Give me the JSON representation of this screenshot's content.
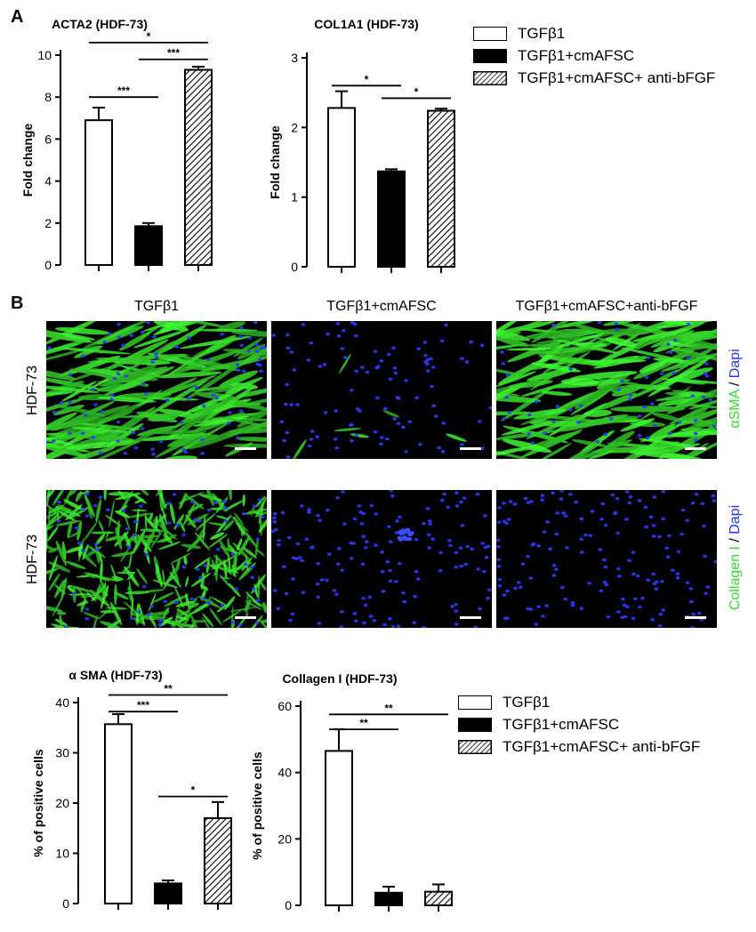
{
  "panel_a_letter": "A",
  "panel_b_letter": "B",
  "colors": {
    "black": "#000000",
    "white": "#ffffff",
    "green": "#33dd33",
    "blue": "#2233ff"
  },
  "legend_a": [
    {
      "label": "TGFβ1",
      "fill": "white"
    },
    {
      "label": "TGFβ1+cmAFSC",
      "fill": "black"
    },
    {
      "label": "TGFβ1+cmAFSC+ anti-bFGF",
      "fill": "hatch"
    }
  ],
  "legend_c": [
    {
      "label": "TGFβ1",
      "fill": "white"
    },
    {
      "label": "TGFβ1+cmAFSC",
      "fill": "black"
    },
    {
      "label": "TGFβ1+cmAFSC+ anti-bFGF",
      "fill": "hatch"
    }
  ],
  "images": {
    "col_labels": [
      "TGFβ1",
      "TGFβ1+cmAFSC",
      "TGFβ1+cmAFSC+anti-bFGF"
    ],
    "row_labels": [
      "HDF-73",
      "HDF-73"
    ],
    "stain_rows": [
      {
        "marker": "αSMA",
        "sep": " / ",
        "dapi": "Dapi"
      },
      {
        "marker": "Collagen I",
        "sep": " / ",
        "dapi": "Dapi"
      }
    ]
  },
  "chart_data": [
    {
      "type": "bar",
      "title": "ACTA2 (HDF-73)",
      "ylabel": "Fold change",
      "xlabel": "",
      "ylim": [
        0,
        10
      ],
      "yticks": [
        0,
        2,
        4,
        6,
        8,
        10
      ],
      "categories": [
        "TGFβ1",
        "TGFβ1+cmAFSC",
        "TGFβ1+cmAFSC+ anti-bFGF"
      ],
      "values": [
        6.9,
        1.85,
        9.3
      ],
      "errors": [
        0.6,
        0.15,
        0.15
      ],
      "fills": [
        "white",
        "black",
        "hatch"
      ],
      "significance": [
        {
          "from": 0,
          "to": 2,
          "y": 10.6,
          "label": "*"
        },
        {
          "from": 0,
          "to": 1,
          "y": 8.0,
          "label": "***"
        },
        {
          "from": 1,
          "to": 2,
          "y": 9.8,
          "label": "***"
        }
      ]
    },
    {
      "type": "bar",
      "title": "COL1A1 (HDF-73)",
      "ylabel": "Fold change",
      "xlabel": "",
      "ylim": [
        0,
        3
      ],
      "yticks": [
        0,
        1,
        2,
        3
      ],
      "categories": [
        "TGFβ1",
        "TGFβ1+cmAFSC",
        "TGFβ1+cmAFSC+ anti-bFGF"
      ],
      "values": [
        2.28,
        1.37,
        2.24
      ],
      "errors": [
        0.24,
        0.03,
        0.03
      ],
      "fills": [
        "white",
        "black",
        "hatch"
      ],
      "significance": [
        {
          "from": 0,
          "to": 1,
          "y": 2.6,
          "label": "*"
        },
        {
          "from": 1,
          "to": 2,
          "y": 2.42,
          "label": "*"
        }
      ]
    },
    {
      "type": "bar",
      "title": "α SMA (HDF-73)",
      "ylabel": "% of positive cells",
      "xlabel": "",
      "ylim": [
        0,
        40
      ],
      "yticks": [
        0,
        10,
        20,
        30,
        40
      ],
      "categories": [
        "TGFβ1",
        "TGFβ1+cmAFSC",
        "TGFβ1+cmAFSC+ anti-bFGF"
      ],
      "values": [
        35.7,
        4.0,
        17.0
      ],
      "errors": [
        2.0,
        0.6,
        3.2
      ],
      "fills": [
        "white",
        "black",
        "hatch"
      ],
      "significance": [
        {
          "from": 0,
          "to": 2,
          "y": 41.5,
          "label": "**"
        },
        {
          "from": 0,
          "to": 1,
          "y": 38.2,
          "label": "***"
        },
        {
          "from": 1,
          "to": 2,
          "y": 21.3,
          "label": "*"
        }
      ]
    },
    {
      "type": "bar",
      "title": "Collagen I (HDF-73)",
      "ylabel": "% of positive cells",
      "xlabel": "",
      "ylim": [
        0,
        60
      ],
      "yticks": [
        0,
        20,
        40,
        60
      ],
      "categories": [
        "TGFβ1",
        "TGFβ1+cmAFSC",
        "TGFβ1+cmAFSC+ anti-bFGF"
      ],
      "values": [
        46.5,
        3.8,
        4.1
      ],
      "errors": [
        6.5,
        1.8,
        2.2
      ],
      "fills": [
        "white",
        "black",
        "hatch"
      ],
      "significance": [
        {
          "from": 0,
          "to": 2,
          "y": 57.5,
          "label": "**"
        },
        {
          "from": 0,
          "to": 1,
          "y": 53.0,
          "label": "**"
        }
      ]
    }
  ]
}
